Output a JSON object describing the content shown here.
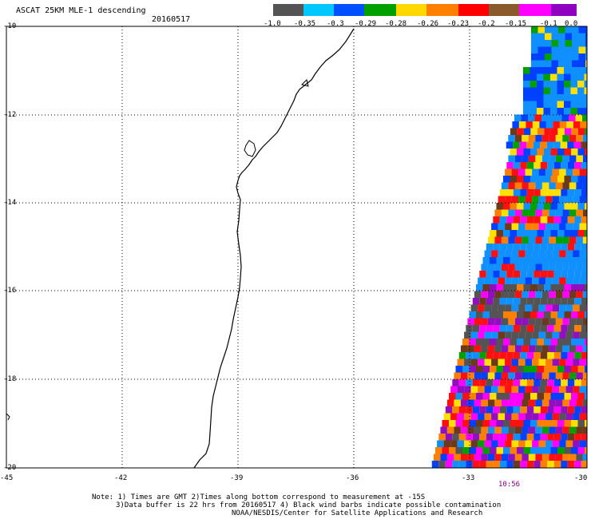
{
  "header": {
    "title": "ASCAT 25KM MLE-1 descending",
    "date": "20160517"
  },
  "colorbar": {
    "colors": [
      "#545454",
      "#00c8ff",
      "#0050ff",
      "#00a000",
      "#ffd800",
      "#ff8000",
      "#ff0000",
      "#8b5a2b",
      "#ff00ff",
      "#9000c0"
    ],
    "labels": [
      "-1.0",
      "-0.35",
      "-0.3",
      "-0.29",
      "-0.28",
      "-0.26",
      "-0.23",
      "-0.2",
      "-0.15",
      "-0.1",
      "0.0"
    ]
  },
  "axes": {
    "lon_ticks": [
      "-45",
      "-42",
      "-39",
      "-36",
      "-33",
      "-30"
    ],
    "lat_ticks": [
      "-10",
      "-12",
      "-14",
      "-16",
      "-18",
      "-20"
    ]
  },
  "time_label": "10:56",
  "footer": {
    "line1": "Note: 1) Times are GMT 2)Times along bottom correspond to measurement at -15S",
    "line2": "3)Data buffer is 22 hrs from 20160517 4) Black wind barbs indicate possible contamination",
    "line3": "NOAA/NESDIS/Center for Satellite Applications and Research"
  },
  "swath_palette": [
    "#545454",
    "#1090ff",
    "#0040ff",
    "#00a000",
    "#ffe000",
    "#ff8000",
    "#ff1010",
    "#6b3a1b",
    "#ff00ff",
    "#9010c0"
  ]
}
